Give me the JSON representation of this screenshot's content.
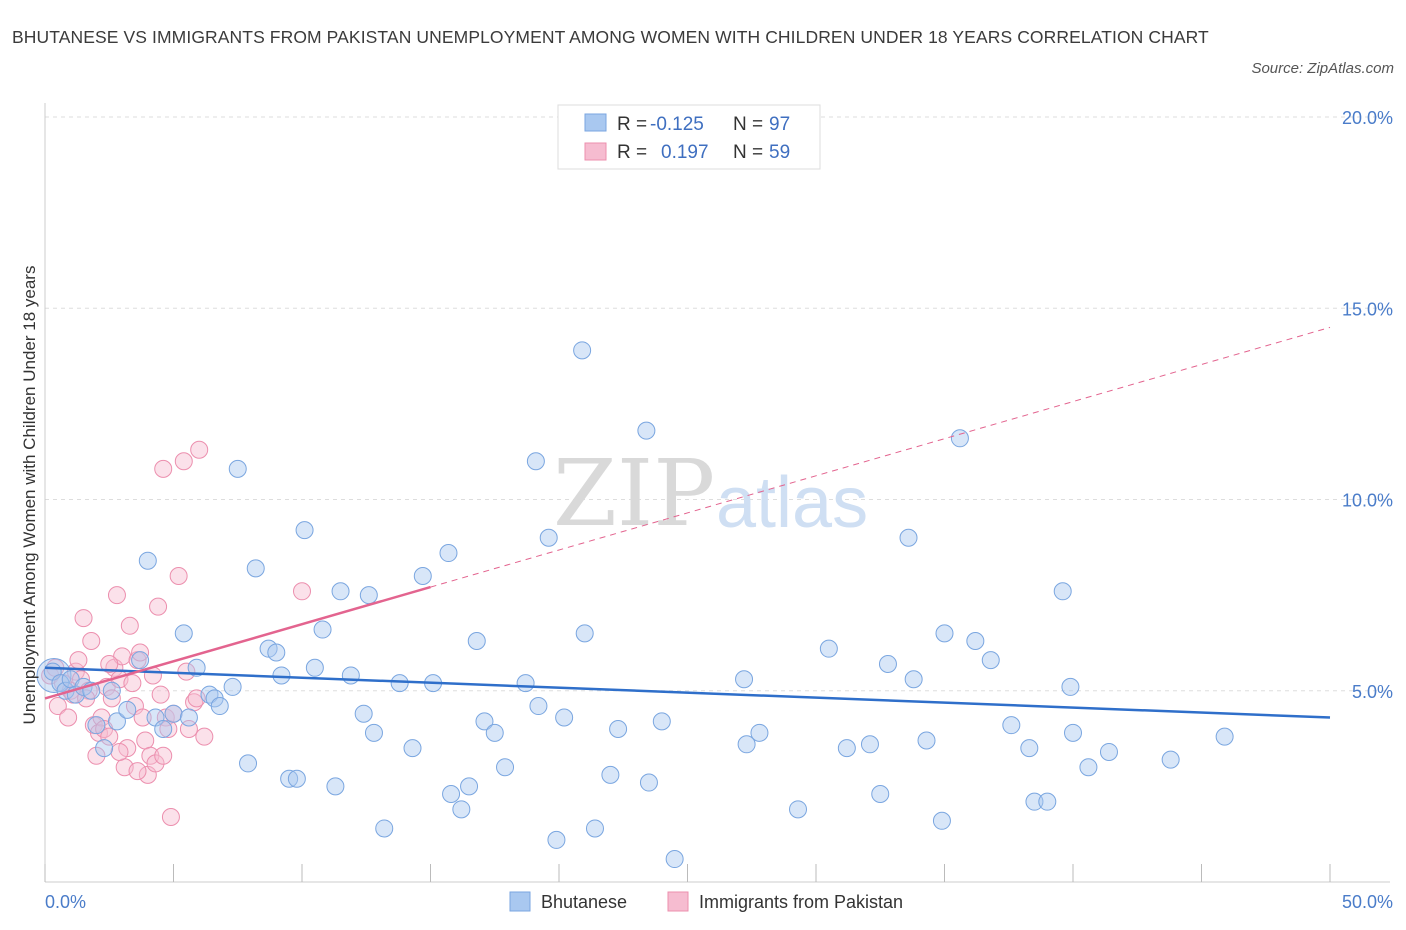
{
  "title": "BHUTANESE VS IMMIGRANTS FROM PAKISTAN UNEMPLOYMENT AMONG WOMEN WITH CHILDREN UNDER 18 YEARS CORRELATION CHART",
  "source": "Source: ZipAtlas.com",
  "watermark": {
    "zip": "ZIP",
    "atlas": "atlas"
  },
  "colors": {
    "blue_fill": "#a9c8f0",
    "blue_stroke": "#7aa6e0",
    "blue_line": "#2f6fca",
    "pink_fill": "#f6bcd0",
    "pink_stroke": "#ec8fae",
    "pink_line": "#e3648f",
    "grid": "#dddddd",
    "axis_text": "#4a7cc9"
  },
  "legend": {
    "r_label": "R =",
    "n_label": "N =",
    "blue": {
      "r": "-0.125",
      "n": "97"
    },
    "pink": {
      "r": "0.197",
      "n": "59"
    }
  },
  "bottom_legend": {
    "blue": "Bhutanese",
    "pink": "Immigrants from Pakistan"
  },
  "chart_data": {
    "type": "scatter",
    "title": "BHUTANESE VS IMMIGRANTS FROM PAKISTAN UNEMPLOYMENT AMONG WOMEN WITH CHILDREN UNDER 18 YEARS CORRELATION CHART",
    "xlabel": "",
    "ylabel": "Unemployment Among Women with Children Under 18 years",
    "xlim": [
      0,
      50
    ],
    "ylim": [
      0,
      20
    ],
    "x_ticks": [
      "0.0%",
      "50.0%"
    ],
    "y_ticks": [
      {
        "value": 5,
        "label": "5.0%"
      },
      {
        "value": 10,
        "label": "10.0%"
      },
      {
        "value": 15,
        "label": "15.0%"
      },
      {
        "value": 20,
        "label": "20.0%"
      }
    ],
    "grid": true,
    "legend_position": "top-center",
    "series": [
      {
        "name": "Bhutanese",
        "color": "#a9c8f0",
        "trend": {
          "x0": 0,
          "y0": 5.6,
          "x1": 50,
          "y1": 4.3
        },
        "points": [
          [
            0.3,
            5.5
          ],
          [
            0.6,
            5.2
          ],
          [
            0.8,
            5.0
          ],
          [
            1.0,
            5.3
          ],
          [
            1.2,
            4.9
          ],
          [
            1.5,
            5.1
          ],
          [
            1.8,
            5.0
          ],
          [
            2.0,
            4.1
          ],
          [
            2.3,
            3.5
          ],
          [
            2.6,
            5.0
          ],
          [
            2.8,
            4.2
          ],
          [
            3.2,
            4.5
          ],
          [
            3.7,
            5.8
          ],
          [
            4.0,
            8.4
          ],
          [
            4.3,
            4.3
          ],
          [
            4.6,
            4.0
          ],
          [
            5.0,
            4.4
          ],
          [
            5.4,
            6.5
          ],
          [
            5.6,
            4.3
          ],
          [
            5.9,
            5.6
          ],
          [
            6.4,
            4.9
          ],
          [
            6.6,
            4.8
          ],
          [
            6.8,
            4.6
          ],
          [
            7.3,
            5.1
          ],
          [
            7.5,
            10.8
          ],
          [
            7.9,
            3.1
          ],
          [
            8.2,
            8.2
          ],
          [
            8.7,
            6.1
          ],
          [
            9.0,
            6.0
          ],
          [
            9.2,
            5.4
          ],
          [
            9.5,
            2.7
          ],
          [
            9.8,
            2.7
          ],
          [
            10.1,
            9.2
          ],
          [
            10.5,
            5.6
          ],
          [
            10.8,
            6.6
          ],
          [
            11.3,
            2.5
          ],
          [
            11.5,
            7.6
          ],
          [
            11.9,
            5.4
          ],
          [
            12.4,
            4.4
          ],
          [
            12.8,
            3.9
          ],
          [
            12.6,
            7.5
          ],
          [
            13.2,
            1.4
          ],
          [
            13.8,
            5.2
          ],
          [
            14.3,
            3.5
          ],
          [
            14.7,
            8.0
          ],
          [
            15.1,
            5.2
          ],
          [
            15.7,
            8.6
          ],
          [
            15.8,
            2.3
          ],
          [
            16.2,
            1.9
          ],
          [
            16.5,
            2.5
          ],
          [
            16.8,
            6.3
          ],
          [
            17.1,
            4.2
          ],
          [
            17.5,
            3.9
          ],
          [
            17.9,
            3.0
          ],
          [
            18.7,
            5.2
          ],
          [
            19.1,
            11.0
          ],
          [
            19.2,
            4.6
          ],
          [
            19.6,
            9.0
          ],
          [
            19.9,
            1.1
          ],
          [
            20.2,
            4.3
          ],
          [
            20.9,
            13.9
          ],
          [
            21.0,
            6.5
          ],
          [
            21.4,
            1.4
          ],
          [
            22.0,
            2.8
          ],
          [
            22.3,
            4.0
          ],
          [
            23.5,
            2.6
          ],
          [
            23.4,
            11.8
          ],
          [
            24.0,
            4.2
          ],
          [
            24.5,
            0.6
          ],
          [
            27.2,
            5.3
          ],
          [
            27.3,
            3.6
          ],
          [
            27.8,
            3.9
          ],
          [
            29.3,
            1.9
          ],
          [
            30.5,
            6.1
          ],
          [
            31.2,
            3.5
          ],
          [
            32.1,
            3.6
          ],
          [
            32.5,
            2.3
          ],
          [
            32.8,
            5.7
          ],
          [
            33.6,
            9.0
          ],
          [
            33.8,
            5.3
          ],
          [
            34.3,
            3.7
          ],
          [
            34.9,
            1.6
          ],
          [
            35.0,
            6.5
          ],
          [
            35.6,
            11.6
          ],
          [
            36.2,
            6.3
          ],
          [
            36.8,
            5.8
          ],
          [
            37.6,
            4.1
          ],
          [
            38.3,
            3.5
          ],
          [
            38.5,
            2.1
          ],
          [
            39.0,
            2.1
          ],
          [
            39.6,
            7.6
          ],
          [
            39.9,
            5.1
          ],
          [
            40.0,
            3.9
          ],
          [
            40.6,
            3.0
          ],
          [
            41.4,
            3.4
          ],
          [
            43.8,
            3.2
          ],
          [
            45.9,
            3.8
          ]
        ]
      },
      {
        "name": "Immigrants from Pakistan",
        "color": "#f6bcd0",
        "trend": {
          "x0": 0,
          "y0": 4.8,
          "x1": 50,
          "y1": 14.5,
          "solid_until_x": 15
        },
        "points": [
          [
            0.2,
            5.4
          ],
          [
            0.4,
            5.6
          ],
          [
            0.5,
            4.6
          ],
          [
            0.7,
            5.2
          ],
          [
            0.9,
            4.3
          ],
          [
            1.0,
            5.0
          ],
          [
            1.1,
            4.9
          ],
          [
            1.2,
            5.5
          ],
          [
            1.3,
            5.8
          ],
          [
            1.4,
            5.3
          ],
          [
            1.5,
            6.9
          ],
          [
            1.7,
            5.0
          ],
          [
            1.8,
            6.3
          ],
          [
            1.9,
            4.1
          ],
          [
            2.0,
            3.3
          ],
          [
            2.1,
            3.9
          ],
          [
            2.2,
            4.3
          ],
          [
            2.3,
            4.0
          ],
          [
            2.4,
            5.1
          ],
          [
            2.5,
            3.8
          ],
          [
            2.6,
            4.8
          ],
          [
            2.7,
            5.6
          ],
          [
            2.8,
            7.5
          ],
          [
            2.9,
            5.3
          ],
          [
            3.0,
            5.9
          ],
          [
            3.1,
            3.0
          ],
          [
            3.2,
            3.5
          ],
          [
            3.3,
            6.7
          ],
          [
            3.4,
            5.2
          ],
          [
            3.5,
            4.6
          ],
          [
            3.6,
            5.8
          ],
          [
            3.7,
            6.0
          ],
          [
            3.8,
            4.3
          ],
          [
            3.9,
            3.7
          ],
          [
            4.0,
            2.8
          ],
          [
            4.1,
            3.3
          ],
          [
            4.2,
            5.4
          ],
          [
            4.3,
            3.1
          ],
          [
            4.4,
            7.2
          ],
          [
            4.5,
            4.9
          ],
          [
            4.6,
            10.8
          ],
          [
            4.7,
            4.3
          ],
          [
            4.8,
            4.0
          ],
          [
            4.9,
            1.7
          ],
          [
            5.0,
            4.4
          ],
          [
            5.2,
            8.0
          ],
          [
            5.4,
            11.0
          ],
          [
            5.5,
            5.5
          ],
          [
            5.6,
            4.0
          ],
          [
            5.8,
            4.7
          ],
          [
            6.0,
            11.3
          ],
          [
            6.2,
            3.8
          ],
          [
            2.9,
            3.4
          ],
          [
            3.6,
            2.9
          ],
          [
            4.6,
            3.3
          ],
          [
            1.6,
            4.8
          ],
          [
            2.5,
            5.7
          ],
          [
            5.9,
            4.8
          ],
          [
            10.0,
            7.6
          ]
        ]
      }
    ]
  }
}
